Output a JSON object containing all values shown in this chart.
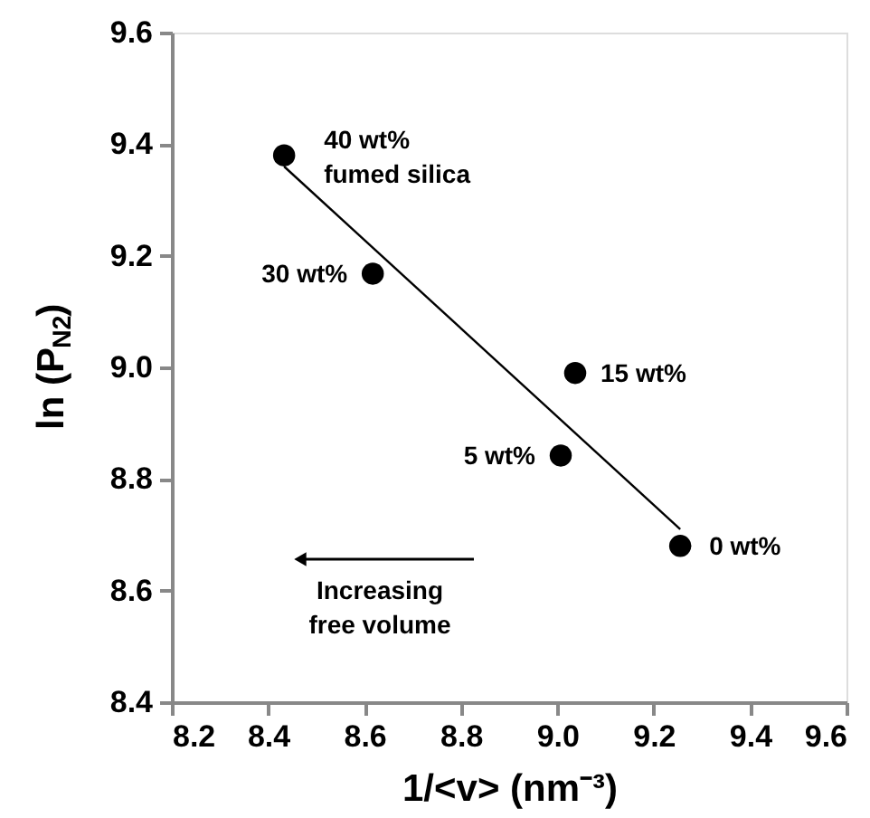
{
  "chart_data": {
    "type": "scatter",
    "xlabel": "1/<v> (nm⁻³)",
    "ylabel": "ln (P$_{N2}$)",
    "xlim": [
      8.2,
      9.6
    ],
    "xticks": [
      8.2,
      8.4,
      8.6,
      8.8,
      {
        "value": 9.0,
        "label": "9.0"
      },
      9.2,
      9.4,
      9.6
    ],
    "ylim": [
      8.4,
      9.6
    ],
    "yticks": [
      8.4,
      8.6,
      8.8,
      {
        "value": 9.0,
        "label": "9.0"
      },
      9.2,
      9.4,
      9.6
    ],
    "grid": false,
    "marker": "circle",
    "series": [
      {
        "color": "#000000",
        "x": [
          8.433,
          8.617,
          9.037,
          9.007,
          9.255
        ],
        "values": [
          9.38,
          9.168,
          8.99,
          8.842,
          8.68
        ]
      },
      {
        "type": "line",
        "color": "#000000",
        "line_style": "solid",
        "marker": "none",
        "x": [
          8.433,
          9.255
        ],
        "values": [
          9.36,
          8.71
        ]
      }
    ],
    "annotations": [
      {
        "text": "40 wt%\nfumed silica",
        "x": 8.433,
        "y": 9.38
      },
      {
        "text": "30 wt%",
        "x": 8.617,
        "y": 9.168
      },
      {
        "text": "15 wt%",
        "x": 9.037,
        "y": 8.99
      },
      {
        "text": "5 wt%",
        "x": 9.007,
        "y": 8.842
      },
      {
        "text": "0 wt%",
        "x": 9.255,
        "y": 8.68
      },
      "Increasing\nfree volume"
    ]
  }
}
